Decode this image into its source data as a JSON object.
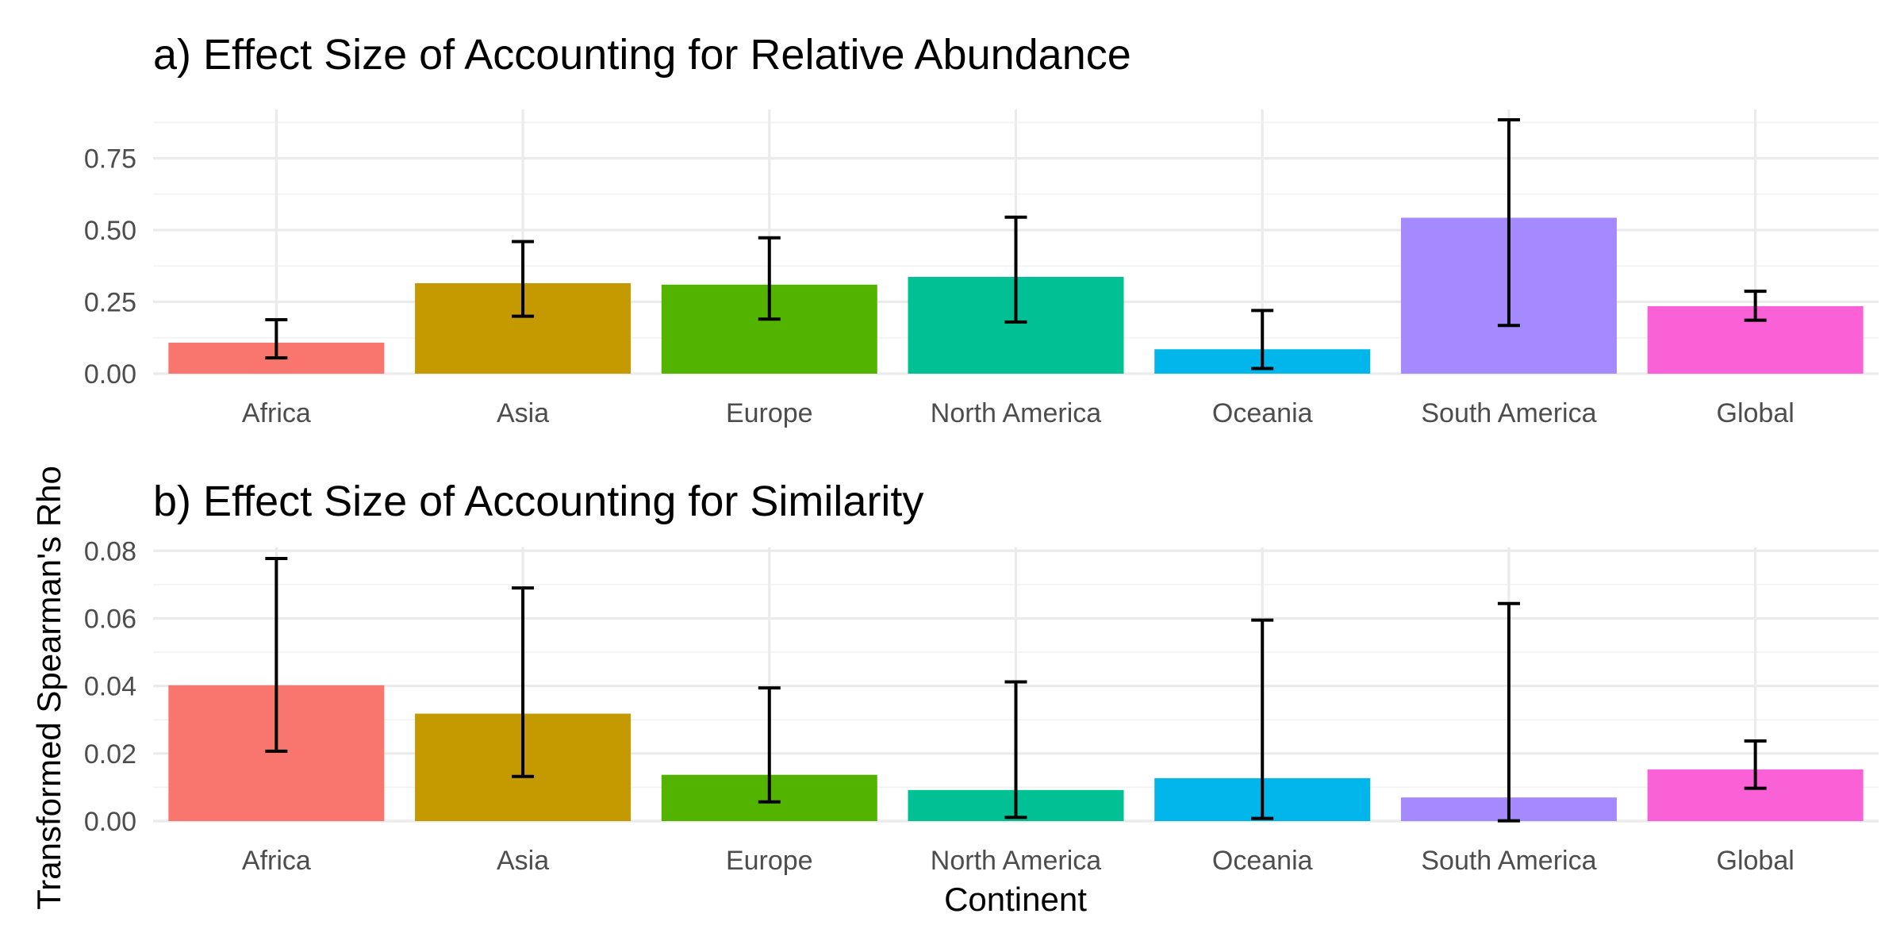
{
  "chart_data": [
    {
      "type": "bar",
      "title": "a) Effect Size of Accounting for Relative Abundance",
      "categories": [
        "Africa",
        "Asia",
        "Europe",
        "North America",
        "Oceania",
        "South America",
        "Global"
      ],
      "values": [
        0.108,
        0.315,
        0.31,
        0.337,
        0.085,
        0.543,
        0.235
      ],
      "error_low": [
        0.055,
        0.2,
        0.19,
        0.18,
        0.018,
        0.168,
        0.186
      ],
      "error_high": [
        0.188,
        0.46,
        0.473,
        0.545,
        0.22,
        0.884,
        0.287
      ],
      "colors": [
        "#F8766D",
        "#C49A00",
        "#53B400",
        "#00C094",
        "#00B6EB",
        "#A58AFF",
        "#FB61D7"
      ],
      "ylim": [
        0,
        0.92
      ],
      "y_ticks": [
        0,
        0.25,
        0.5,
        0.75
      ],
      "y_tick_labels": [
        "0.00",
        "0.25",
        "0.50",
        "0.75"
      ],
      "grid": true,
      "legend": "none"
    },
    {
      "type": "bar",
      "title": "b) Effect Size of Accounting for Similarity",
      "categories": [
        "Africa",
        "Asia",
        "Europe",
        "North America",
        "Oceania",
        "South America",
        "Global"
      ],
      "values": [
        0.0402,
        0.0318,
        0.0137,
        0.0092,
        0.0127,
        0.007,
        0.0153
      ],
      "error_low": [
        0.0207,
        0.0132,
        0.0057,
        0.0011,
        0.0008,
        0.0001,
        0.0097
      ],
      "error_high": [
        0.0777,
        0.069,
        0.0394,
        0.0412,
        0.0595,
        0.0644,
        0.0237
      ],
      "colors": [
        "#F8766D",
        "#C49A00",
        "#53B400",
        "#00C094",
        "#00B6EB",
        "#A58AFF",
        "#FB61D7"
      ],
      "ylim": [
        0,
        0.081
      ],
      "y_ticks": [
        0,
        0.02,
        0.04,
        0.06,
        0.08
      ],
      "y_tick_labels": [
        "0.00",
        "0.02",
        "0.04",
        "0.06",
        "0.08"
      ],
      "grid": true,
      "legend": "none"
    }
  ],
  "axes": {
    "xlabel": "Continent",
    "ylabel": "Transformed Spearman's Rho"
  }
}
